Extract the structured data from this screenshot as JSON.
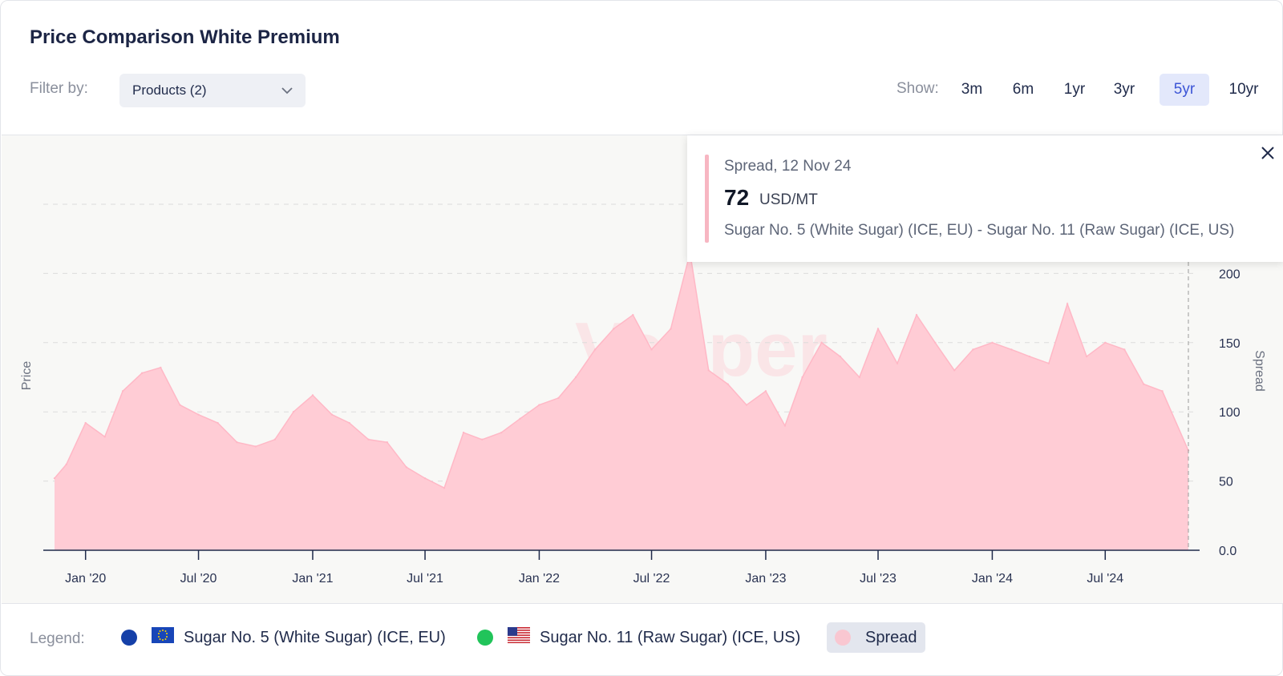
{
  "header": {
    "title": "Price Comparison White Premium",
    "filter_label": "Filter by:",
    "dropdown_value": "Products (2)",
    "show_label": "Show:",
    "ranges": [
      "3m",
      "6m",
      "1yr",
      "3yr",
      "5yr",
      "10yr"
    ],
    "active_range": "5yr"
  },
  "tooltip": {
    "heading": "Spread, 12 Nov 24",
    "value": "72",
    "unit": "USD/MT",
    "description": "Sugar No. 5 (White Sugar) (ICE, EU) - Sugar No. 11 (Raw Sugar) (ICE, US)"
  },
  "legend": {
    "label": "Legend:",
    "items": [
      {
        "label": "Sugar No. 5 (White Sugar) (ICE, EU)",
        "color": "#1540a8",
        "flag": "eu-flag-icon"
      },
      {
        "label": "Sugar No. 11 (Raw Sugar) (ICE, US)",
        "color": "#21c45a",
        "flag": "us-flag-icon"
      },
      {
        "label": "Spread",
        "color": "#f9c7d1",
        "active": true
      }
    ]
  },
  "colors": {
    "spread_fill": "#ffccd5",
    "spread_stroke": "#ffb8c6",
    "accent": "#3c55d6"
  },
  "chart_data": {
    "type": "area",
    "title": "",
    "ylabel_left": "Price",
    "ylabel_right": "Spread",
    "x_ticks": [
      "Jan '20",
      "Jul '20",
      "Jan '21",
      "Jul '21",
      "Jan '22",
      "Jul '22",
      "Jan '23",
      "Jul '23",
      "Jan '24",
      "Jul '24"
    ],
    "y_ticks": [
      "0.0",
      "50",
      "100",
      "150",
      "200"
    ],
    "ylim": [
      0,
      250
    ],
    "grid": true,
    "watermark": "Vesper",
    "series": [
      {
        "name": "Spread",
        "x": [
          "2019-11-12",
          "2019-12-01",
          "2020-01-01",
          "2020-02-01",
          "2020-03-01",
          "2020-04-01",
          "2020-05-01",
          "2020-06-01",
          "2020-07-01",
          "2020-08-01",
          "2020-09-01",
          "2020-10-01",
          "2020-11-01",
          "2020-12-01",
          "2021-01-01",
          "2021-02-01",
          "2021-03-01",
          "2021-04-01",
          "2021-05-01",
          "2021-06-01",
          "2021-07-01",
          "2021-08-01",
          "2021-09-01",
          "2021-10-01",
          "2021-11-01",
          "2021-12-01",
          "2022-01-01",
          "2022-02-01",
          "2022-03-01",
          "2022-04-01",
          "2022-05-01",
          "2022-06-01",
          "2022-07-01",
          "2022-08-01",
          "2022-09-01",
          "2022-10-01",
          "2022-11-01",
          "2022-12-01",
          "2023-01-01",
          "2023-02-01",
          "2023-03-01",
          "2023-04-01",
          "2023-05-01",
          "2023-06-01",
          "2023-07-01",
          "2023-08-01",
          "2023-09-01",
          "2023-10-01",
          "2023-11-01",
          "2023-12-01",
          "2024-01-01",
          "2024-02-01",
          "2024-03-01",
          "2024-04-01",
          "2024-05-01",
          "2024-06-01",
          "2024-07-01",
          "2024-08-01",
          "2024-09-01",
          "2024-10-01",
          "2024-11-12"
        ],
        "values": [
          52,
          62,
          92,
          82,
          115,
          128,
          132,
          105,
          98,
          92,
          78,
          75,
          80,
          100,
          112,
          98,
          92,
          80,
          78,
          60,
          52,
          45,
          85,
          80,
          85,
          95,
          105,
          110,
          125,
          145,
          160,
          170,
          145,
          160,
          215,
          130,
          120,
          105,
          115,
          90,
          125,
          150,
          140,
          125,
          160,
          135,
          170,
          150,
          130,
          145,
          150,
          145,
          140,
          135,
          178,
          140,
          150,
          145,
          120,
          115,
          72
        ]
      }
    ]
  }
}
